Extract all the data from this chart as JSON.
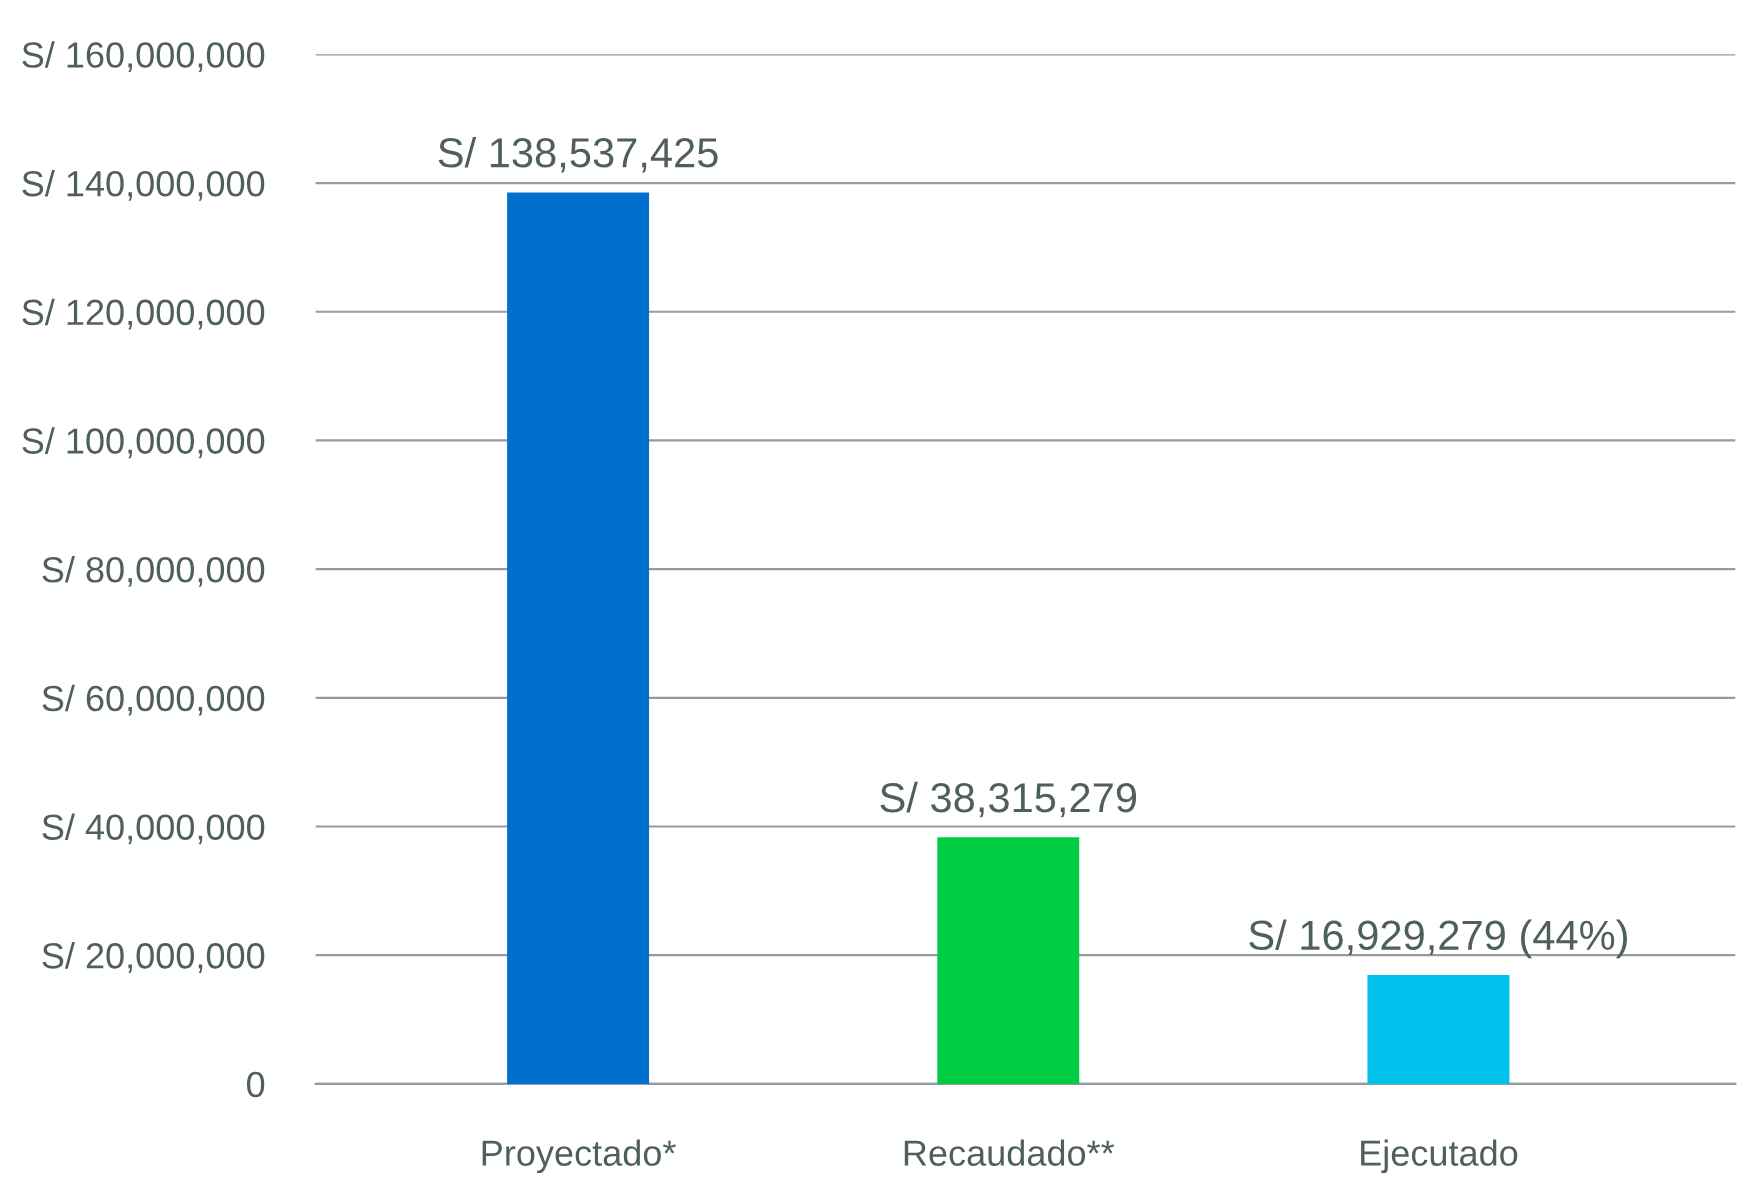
{
  "chart_data": {
    "type": "bar",
    "categories": [
      "Proyectado*",
      "Recaudado**",
      "Ejecutado"
    ],
    "values": [
      138537425,
      38315279,
      16929279
    ],
    "colors": [
      "#0070cc",
      "#00cc44",
      "#00c0ec"
    ],
    "value_labels": [
      "S/ 138,537,425",
      "S/ 38,315,279",
      "S/ 16,929,279 (44%)"
    ],
    "ylim": [
      0,
      160000000
    ],
    "yticks": [
      {
        "value": 0,
        "label": "0"
      },
      {
        "value": 20000000,
        "label": "S/ 20,000,000"
      },
      {
        "value": 40000000,
        "label": "S/ 40,000,000"
      },
      {
        "value": 60000000,
        "label": "S/ 60,000,000"
      },
      {
        "value": 80000000,
        "label": "S/ 80,000,000"
      },
      {
        "value": 100000000,
        "label": "S/ 100,000,000"
      },
      {
        "value": 120000000,
        "label": "S/ 120,000,000"
      },
      {
        "value": 140000000,
        "label": "S/ 140,000,000"
      },
      {
        "value": 160000000,
        "label": "S/ 160,000,000"
      }
    ],
    "grid": "y"
  }
}
